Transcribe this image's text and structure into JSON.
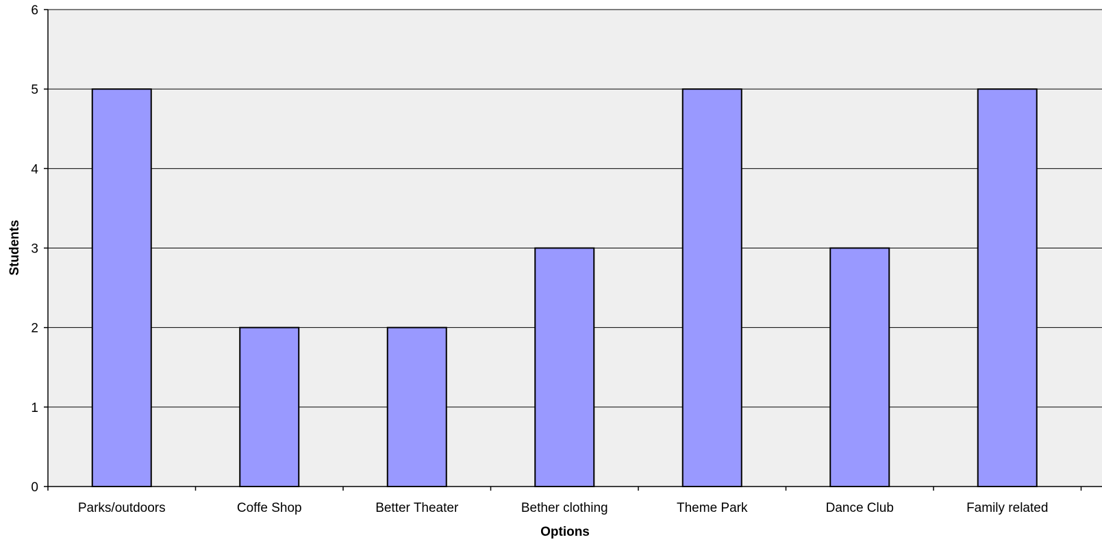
{
  "chart_data": {
    "type": "bar",
    "title": "",
    "xlabel": "Options",
    "ylabel": "Students",
    "categories": [
      "Parks/outdoors",
      "Coffe Shop",
      "Better Theater",
      "Bether clothing",
      "Theme Park",
      "Dance Club",
      "Family related"
    ],
    "values": [
      5,
      2,
      2,
      3,
      5,
      3,
      5
    ],
    "ylim": [
      0,
      6
    ],
    "yticks": [
      0,
      1,
      2,
      3,
      4,
      5,
      6
    ],
    "grid": true,
    "legend": "none",
    "colors": {
      "bar_fill": "#9999ff",
      "bar_stroke": "#000000",
      "plot_background": "#efefef",
      "gridline": "#000000"
    }
  }
}
